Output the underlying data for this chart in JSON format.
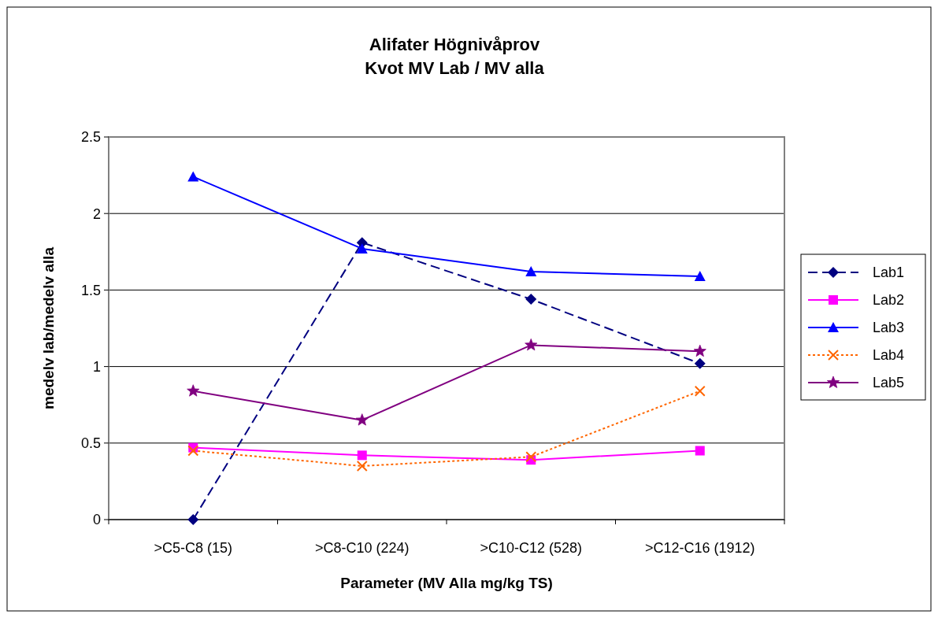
{
  "chart_data": {
    "type": "line",
    "title": "Alifater Högnivåprov\nKvot MV Lab / MV alla",
    "xlabel": "Parameter (MV Alla mg/kg TS)",
    "ylabel": "medelv lab/medelv alla",
    "categories": [
      ">C5-C8 (15)",
      ">C8-C10 (224)",
      ">C10-C12 (528)",
      ">C12-C16 (1912)"
    ],
    "ylim": [
      0,
      2.5
    ],
    "yticks": [
      0,
      0.5,
      1,
      1.5,
      2,
      2.5
    ],
    "grid": "y",
    "legend": "right",
    "series": [
      {
        "name": "Lab1",
        "color": "#000080",
        "values": [
          0,
          1.81,
          1.44,
          1.02
        ],
        "marker": "diamond",
        "line_style": "dashed"
      },
      {
        "name": "Lab2",
        "color": "#ff00ff",
        "values": [
          0.47,
          0.42,
          0.39,
          0.45
        ],
        "marker": "square",
        "line_style": "solid"
      },
      {
        "name": "Lab3",
        "color": "#0000ff",
        "values": [
          2.24,
          1.77,
          1.62,
          1.59
        ],
        "marker": "triangle",
        "line_style": "solid"
      },
      {
        "name": "Lab4",
        "color": "#ff6600",
        "values": [
          0.45,
          0.35,
          0.41,
          0.84
        ],
        "marker": "cross",
        "line_style": "dotted"
      },
      {
        "name": "Lab5",
        "color": "#800080",
        "values": [
          0.84,
          0.65,
          1.14,
          1.1
        ],
        "marker": "star",
        "line_style": "solid"
      }
    ]
  }
}
